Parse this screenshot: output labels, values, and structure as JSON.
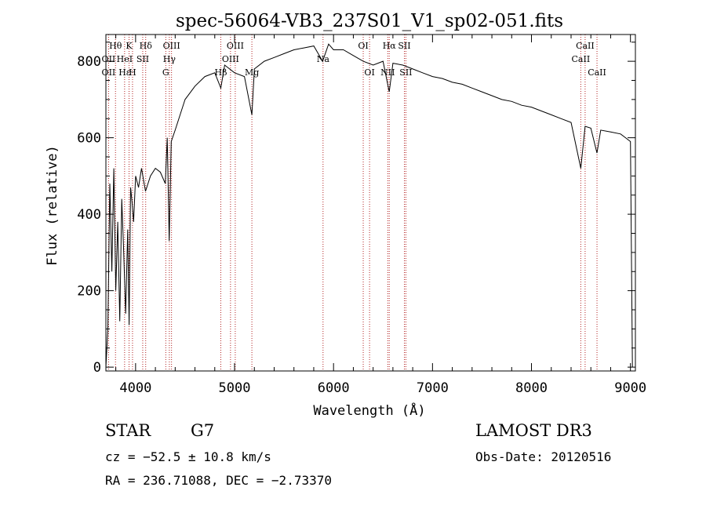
{
  "chart_data": {
    "type": "line",
    "title": "spec-56064-VB3_237S01_V1_sp02-051.fits",
    "xlabel": "Wavelength (Å)",
    "ylabel": "Flux (relative)",
    "xlim": [
      3700,
      9050
    ],
    "ylim": [
      -10,
      870
    ],
    "xticks": [
      4000,
      5000,
      6000,
      7000,
      8000,
      9000
    ],
    "yticks": [
      0,
      200,
      400,
      600,
      800
    ],
    "series": [
      {
        "name": "flux",
        "x": [
          3700,
          3720,
          3740,
          3760,
          3780,
          3800,
          3820,
          3840,
          3860,
          3880,
          3900,
          3920,
          3935,
          3950,
          3965,
          3980,
          4000,
          4030,
          4060,
          4100,
          4150,
          4200,
          4250,
          4300,
          4320,
          4340,
          4360,
          4400,
          4450,
          4500,
          4600,
          4700,
          4800,
          4861,
          4900,
          5000,
          5100,
          5175,
          5200,
          5300,
          5400,
          5500,
          5600,
          5700,
          5800,
          5890,
          5950,
          6000,
          6100,
          6200,
          6300,
          6400,
          6500,
          6563,
          6600,
          6700,
          6800,
          6900,
          7000,
          7100,
          7200,
          7300,
          7400,
          7500,
          7600,
          7700,
          7800,
          7900,
          8000,
          8100,
          8200,
          8300,
          8400,
          8498,
          8542,
          8600,
          8662,
          8700,
          8800,
          8900,
          8950,
          9000,
          9020
        ],
        "values": [
          0,
          100,
          480,
          250,
          520,
          200,
          380,
          120,
          440,
          300,
          140,
          360,
          110,
          470,
          430,
          380,
          500,
          470,
          520,
          460,
          500,
          520,
          510,
          480,
          600,
          330,
          590,
          620,
          660,
          700,
          735,
          760,
          770,
          730,
          790,
          770,
          760,
          660,
          780,
          800,
          810,
          820,
          830,
          835,
          840,
          800,
          845,
          830,
          830,
          815,
          800,
          790,
          800,
          720,
          795,
          790,
          780,
          770,
          760,
          755,
          745,
          740,
          730,
          720,
          710,
          700,
          695,
          685,
          680,
          670,
          660,
          650,
          640,
          520,
          630,
          625,
          560,
          620,
          615,
          610,
          600,
          590,
          0
        ]
      }
    ],
    "line_markers": [
      {
        "label": "Hθ",
        "x": 3797,
        "row": 0
      },
      {
        "label": "OII",
        "x": 3727,
        "row": 1
      },
      {
        "label": "OII",
        "x": 3727,
        "row": 2
      },
      {
        "label": "Hε",
        "x": 3889,
        "row": 2
      },
      {
        "label": "HeI",
        "x": 3889,
        "row": 1
      },
      {
        "label": "K",
        "x": 3934,
        "row": 0
      },
      {
        "label": "H",
        "x": 3969,
        "row": 2
      },
      {
        "label": "SII",
        "x": 4072,
        "row": 1
      },
      {
        "label": "Hδ",
        "x": 4102,
        "row": 0
      },
      {
        "label": "OIII",
        "x": 4363,
        "row": 0
      },
      {
        "label": "Hγ",
        "x": 4341,
        "row": 1
      },
      {
        "label": "G",
        "x": 4305,
        "row": 2
      },
      {
        "label": "OIII",
        "x": 5007,
        "row": 0
      },
      {
        "label": "OIII",
        "x": 4959,
        "row": 1
      },
      {
        "label": "Hβ",
        "x": 4861,
        "row": 2
      },
      {
        "label": "Mg",
        "x": 5175,
        "row": 2
      },
      {
        "label": "Na",
        "x": 5894,
        "row": 1
      },
      {
        "label": "OI",
        "x": 6300,
        "row": 0
      },
      {
        "label": "OI",
        "x": 6364,
        "row": 2
      },
      {
        "label": "Hα",
        "x": 6563,
        "row": 0
      },
      {
        "label": "SII",
        "x": 6716,
        "row": 0
      },
      {
        "label": "NII",
        "x": 6548,
        "row": 2
      },
      {
        "label": "SII",
        "x": 6731,
        "row": 2
      },
      {
        "label": "CaII",
        "x": 8542,
        "row": 0
      },
      {
        "label": "CaII",
        "x": 8498,
        "row": 1
      },
      {
        "label": "CaII",
        "x": 8662,
        "row": 2
      }
    ],
    "line_color": "#b22222"
  },
  "info": {
    "object_type": "STAR",
    "spectral_class": "G7",
    "survey": "LAMOST DR3",
    "cz": "cz = −52.5 ± 10.8 km/s",
    "obs_date": "Obs-Date: 20120516",
    "radec": "RA = 236.71088, DEC =  −2.73370"
  }
}
